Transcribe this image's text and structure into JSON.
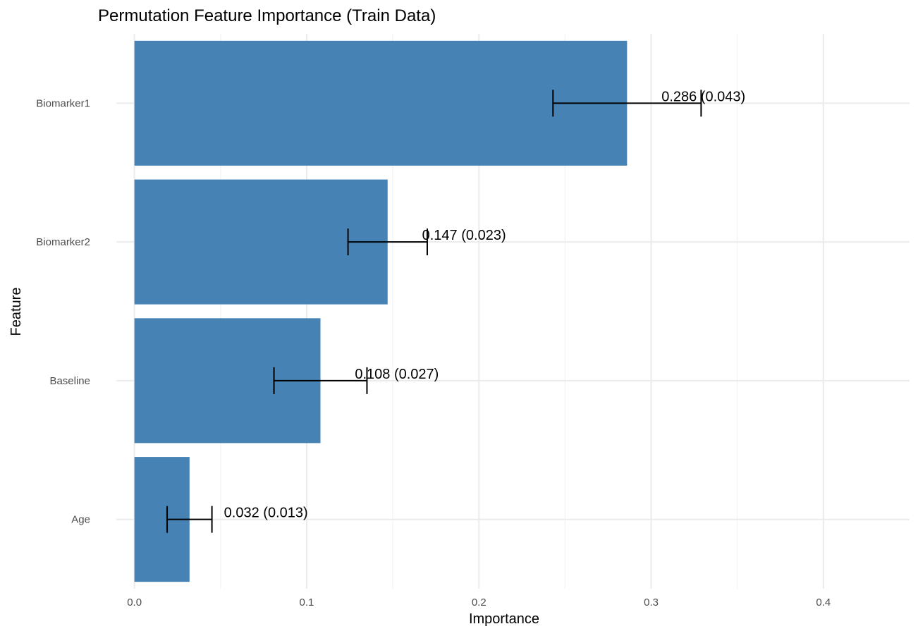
{
  "chart_data": {
    "type": "bar",
    "orientation": "horizontal",
    "title": "Permutation Feature Importance (Train Data)",
    "xlabel": "Importance",
    "ylabel": "Feature",
    "categories": [
      "Biomarker1",
      "Biomarker2",
      "Baseline",
      "Age"
    ],
    "values": [
      0.286,
      0.147,
      0.108,
      0.032
    ],
    "errors": [
      0.043,
      0.023,
      0.027,
      0.013
    ],
    "data_labels": [
      "0.286 (0.043)",
      "0.147 (0.023)",
      "0.108 (0.027)",
      "0.032 (0.013)"
    ],
    "xlim": [
      -0.0105,
      0.45
    ],
    "xticks": [
      0.0,
      0.1,
      0.2,
      0.3,
      0.4
    ],
    "xtick_labels": [
      "0.0",
      "0.1",
      "0.2",
      "0.3",
      "0.4"
    ],
    "grid": true,
    "bar_color": "#4682b4"
  }
}
